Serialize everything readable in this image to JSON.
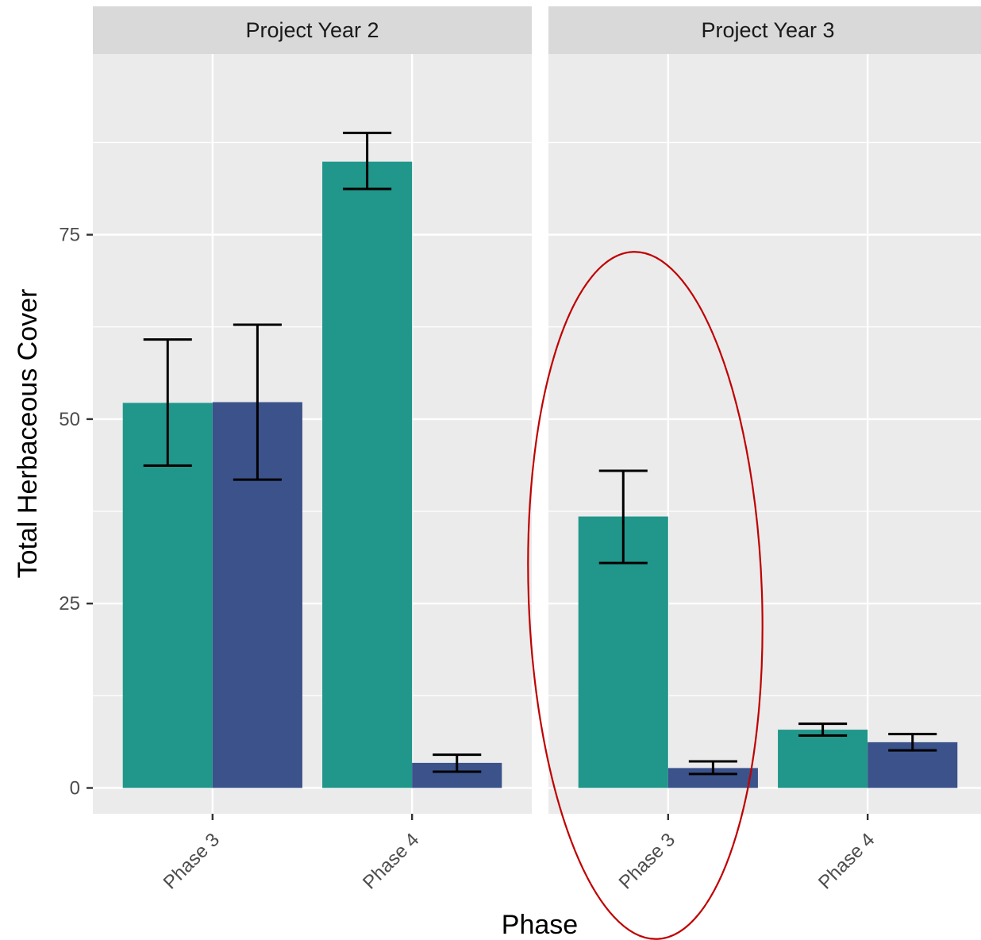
{
  "chart_data": {
    "type": "bar",
    "xlabel": "Phase",
    "ylabel": "Total Herbaceous Cover",
    "ylim": [
      -3.5,
      99.5
    ],
    "yticks": [
      "0",
      "25",
      "50",
      "75"
    ],
    "grid": true,
    "legend": "none",
    "colors": [
      "#21968a",
      "#3b528b"
    ],
    "panels": [
      {
        "title": "Project Year 2",
        "categories": [
          "Phase 3",
          "Phase 4"
        ],
        "series": [
          {
            "values": [
              52.2,
              84.9
            ],
            "err_low": [
              43.7,
              81.2
            ],
            "err_high": [
              60.8,
              88.8
            ]
          },
          {
            "values": [
              52.3,
              3.4
            ],
            "err_low": [
              41.8,
              2.2
            ],
            "err_high": [
              62.8,
              4.5
            ]
          }
        ]
      },
      {
        "title": "Project Year 3",
        "categories": [
          "Phase 3",
          "Phase 4"
        ],
        "series": [
          {
            "values": [
              36.8,
              7.9
            ],
            "err_low": [
              30.5,
              7.1
            ],
            "err_high": [
              43.0,
              8.7
            ]
          },
          {
            "values": [
              2.7,
              6.2
            ],
            "err_low": [
              1.9,
              5.1
            ],
            "err_high": [
              3.6,
              7.3
            ]
          }
        ]
      }
    ],
    "annotations": [
      {
        "shape": "ellipse",
        "color": "#c00000",
        "highlights": "Project Year 3 · Phase 3"
      }
    ]
  }
}
